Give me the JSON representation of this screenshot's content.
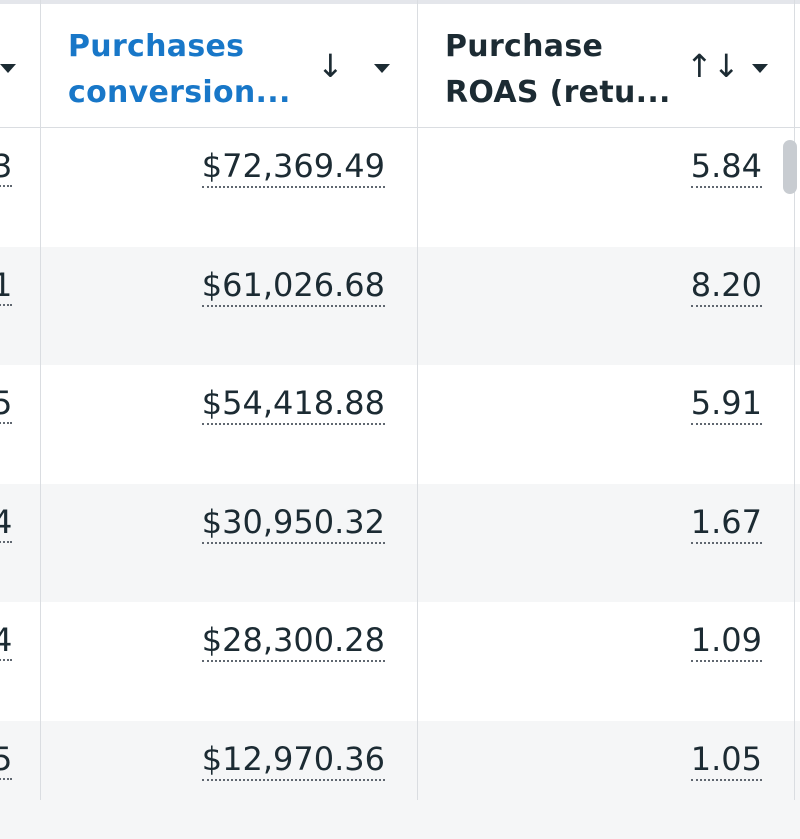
{
  "columns": [
    {
      "key": "purchases_conversion",
      "label_line1": "Purchases",
      "label_line2": "conversion...",
      "sort_icon": "↓",
      "sort_icon_name": "arrow-down-icon",
      "active": true,
      "active_color": "#1877c8"
    },
    {
      "key": "purchase_roas",
      "label_line1": "Purchase",
      "label_line2": "ROAS (retu...",
      "sort_icon": "↑↓",
      "sort_icon_name": "sort-both-icon",
      "active": false
    }
  ],
  "rows": [
    {
      "prev": "3",
      "purchases_conversion": "$72,369.49",
      "purchase_roas": "5.84"
    },
    {
      "prev": "1",
      "purchases_conversion": "$61,026.68",
      "purchase_roas": "8.20"
    },
    {
      "prev": "5",
      "purchases_conversion": "$54,418.88",
      "purchase_roas": "5.91"
    },
    {
      "prev": "4",
      "purchases_conversion": "$30,950.32",
      "purchase_roas": "1.67"
    },
    {
      "prev": "4",
      "purchases_conversion": "$28,300.28",
      "purchase_roas": "1.09"
    },
    {
      "prev": "5",
      "purchases_conversion": "$12,970.36",
      "purchase_roas": "1.05"
    }
  ],
  "colors": {
    "alt_row": "#f5f6f7",
    "divider": "#dadde1",
    "text": "#1c2b33",
    "scrollbar": "#c8ccd1"
  }
}
